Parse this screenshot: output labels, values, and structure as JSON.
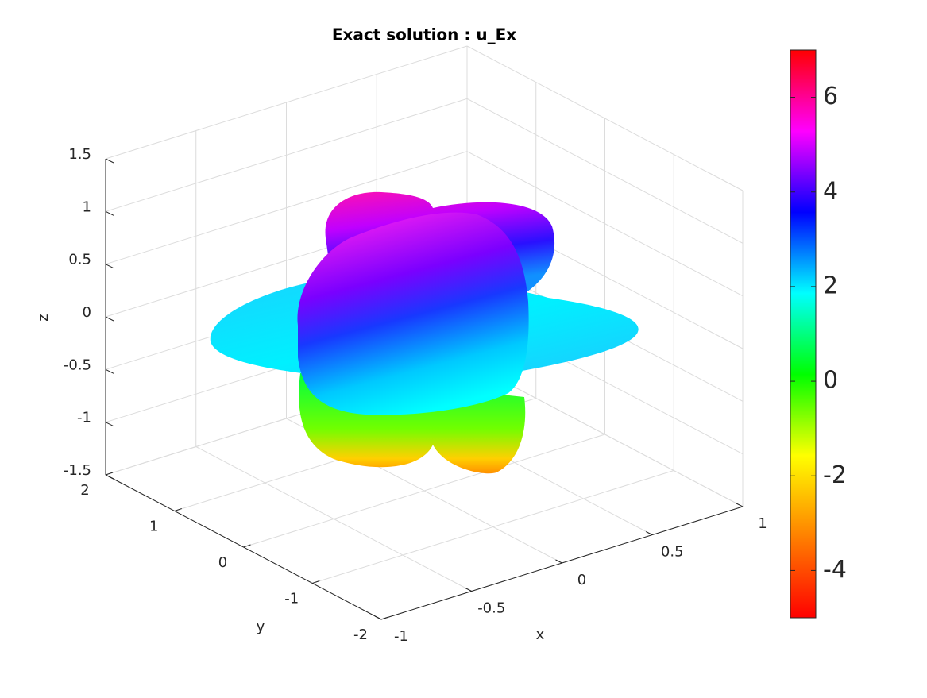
{
  "chart_data": {
    "type": "surface3d",
    "title": "Exact solution : u_Ex",
    "xlabel": "x",
    "ylabel": "y",
    "zlabel": "z",
    "xlim": [
      -1,
      1
    ],
    "xticks": [
      -1,
      -0.5,
      0,
      0.5,
      1
    ],
    "ylim": [
      -2,
      2
    ],
    "yticks": [
      -2,
      -1,
      0,
      1,
      2
    ],
    "zlim": [
      -1.5,
      1.5
    ],
    "zticks": [
      -1.5,
      -1,
      -0.5,
      0,
      0.5,
      1,
      1.5
    ],
    "clim": [
      -5,
      7
    ],
    "cticks": [
      -4,
      -2,
      0,
      2,
      4,
      6
    ],
    "colormap": [
      "#ff0000",
      "#ff8000",
      "#ffff00",
      "#00ff00",
      "#00ffff",
      "#0000ff",
      "#ff00ff",
      "#ff0000"
    ],
    "grid": true
  }
}
